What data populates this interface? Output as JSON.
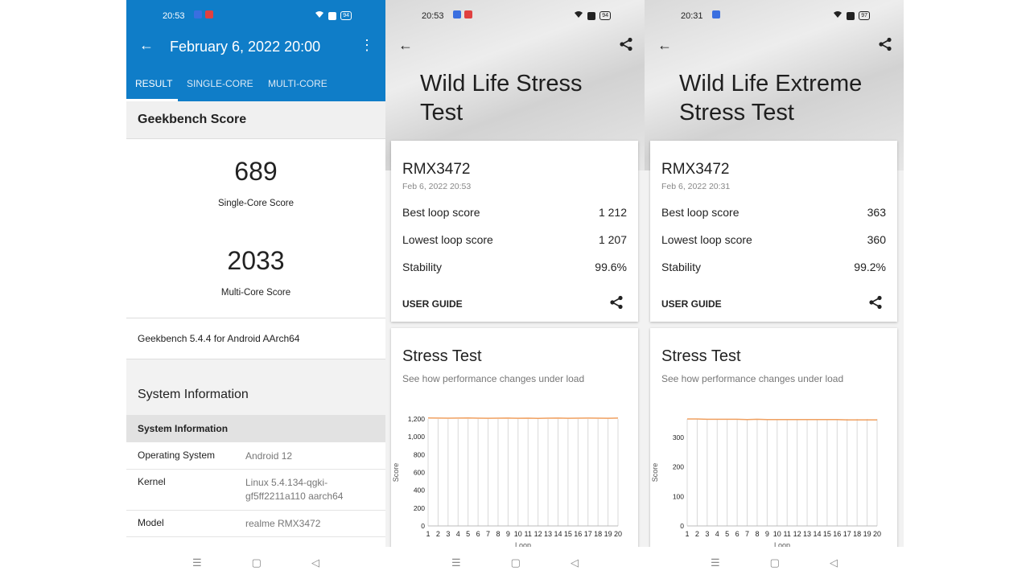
{
  "phone1": {
    "status": {
      "time": "20:53",
      "battery": "94"
    },
    "header": {
      "title": "February 6, 2022 20:00"
    },
    "tabs": [
      "RESULT",
      "SINGLE-CORE",
      "MULTI-CORE"
    ],
    "section_title": "Geekbench Score",
    "single_score": "689",
    "single_label": "Single-Core Score",
    "multi_score": "2033",
    "multi_label": "Multi-Core Score",
    "version": "Geekbench 5.4.4 for Android AArch64",
    "system_title": "System Information",
    "system_subheader": "System Information",
    "rows": [
      {
        "key": "Operating System",
        "value": "Android 12"
      },
      {
        "key": "Kernel",
        "value": "Linux 5.4.134-qgki-gf5ff2211a110 aarch64"
      },
      {
        "key": "Model",
        "value": "realme RMX3472"
      }
    ]
  },
  "phone2": {
    "status": {
      "time": "20:53",
      "battery": "94"
    },
    "hero_title": "Wild Life Stress Test",
    "device": "RMX3472",
    "date": "Feb 6, 2022 20:53",
    "metrics": [
      {
        "label": "Best loop score",
        "value": "1 212"
      },
      {
        "label": "Lowest loop score",
        "value": "1 207"
      },
      {
        "label": "Stability",
        "value": "99.6%"
      }
    ],
    "user_guide": "USER GUIDE",
    "stress_title": "Stress Test",
    "stress_sub": "See how performance changes under load"
  },
  "phone3": {
    "status": {
      "time": "20:31",
      "battery": "97"
    },
    "hero_title": "Wild Life Extreme Stress Test",
    "device": "RMX3472",
    "date": "Feb 6, 2022 20:31",
    "metrics": [
      {
        "label": "Best loop score",
        "value": "363"
      },
      {
        "label": "Lowest loop score",
        "value": "360"
      },
      {
        "label": "Stability",
        "value": "99.2%"
      }
    ],
    "user_guide": "USER GUIDE",
    "stress_title": "Stress Test",
    "stress_sub": "See how performance changes under load"
  },
  "colors": {
    "header_blue": "#0f7dc8",
    "line_orange": "#f0a060"
  },
  "icons": [
    "back-arrow-icon",
    "more-vert-icon",
    "share-icon",
    "wifi-icon",
    "battery-icon",
    "nav-menu-icon",
    "nav-home-icon",
    "nav-back-icon"
  ],
  "chart_data": [
    {
      "type": "line",
      "xlabel": "Loop",
      "ylabel": "Score",
      "x": [
        1,
        2,
        3,
        4,
        5,
        6,
        7,
        8,
        9,
        10,
        11,
        12,
        13,
        14,
        15,
        16,
        17,
        18,
        19,
        20
      ],
      "y_ticks": [
        "0",
        "200",
        "400",
        "600",
        "800",
        "1,000",
        "1,200"
      ],
      "ylim": [
        0,
        1200
      ],
      "values": [
        1212,
        1210,
        1209,
        1210,
        1211,
        1209,
        1208,
        1209,
        1210,
        1208,
        1209,
        1207,
        1209,
        1210,
        1208,
        1209,
        1210,
        1209,
        1208,
        1210
      ],
      "grid": true
    },
    {
      "type": "line",
      "xlabel": "Loop",
      "ylabel": "Score",
      "x": [
        1,
        2,
        3,
        4,
        5,
        6,
        7,
        8,
        9,
        10,
        11,
        12,
        13,
        14,
        15,
        16,
        17,
        18,
        19,
        20
      ],
      "y_ticks": [
        "0",
        "100",
        "200",
        "300"
      ],
      "ylim": [
        0,
        363
      ],
      "values": [
        363,
        363,
        362,
        362,
        362,
        362,
        361,
        362,
        361,
        361,
        361,
        361,
        361,
        361,
        361,
        361,
        360,
        360,
        360,
        360
      ],
      "grid": true
    }
  ]
}
